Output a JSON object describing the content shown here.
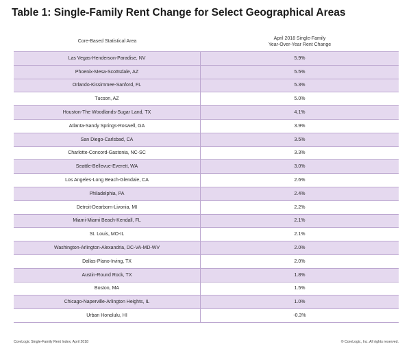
{
  "title": "Table 1: Single-Family Rent Change for Select Geographical Areas",
  "columns": {
    "area": "Core-Based Statistical Area",
    "change_line1": "April 2018 Single-Family",
    "change_line2": "Year-Over-Year Rent Change"
  },
  "rows": [
    {
      "area": "Las Vegas-Henderson-Paradise, NV",
      "change": "5.9%"
    },
    {
      "area": "Phoenix-Mesa-Scottsdale, AZ",
      "change": "5.5%"
    },
    {
      "area": "Orlando-Kissimmee-Sanford, FL",
      "change": "5.3%"
    },
    {
      "area": "Tucson, AZ",
      "change": "5.0%"
    },
    {
      "area": "Houston-The Woodlands-Sugar Land, TX",
      "change": "4.1%"
    },
    {
      "area": "Atlanta-Sandy Springs-Roswell, GA",
      "change": "3.9%"
    },
    {
      "area": "San Diego-Carlsbad, CA",
      "change": "3.5%"
    },
    {
      "area": "Charlotte-Concord-Gastonia, NC-SC",
      "change": "3.3%"
    },
    {
      "area": "Seattle-Bellevue-Everett, WA",
      "change": "3.0%"
    },
    {
      "area": "Los Angeles-Long Beach-Glendale, CA",
      "change": "2.6%"
    },
    {
      "area": "Philadelphia, PA",
      "change": "2.4%"
    },
    {
      "area": "Detroit-Dearborn-Livonia, MI",
      "change": "2.2%"
    },
    {
      "area": "Miami-Miami Beach-Kendall, FL",
      "change": "2.1%"
    },
    {
      "area": "St. Louis, MO-IL",
      "change": "2.1%"
    },
    {
      "area": "Washington-Arlington-Alexandria, DC-VA-MD-WV",
      "change": "2.0%"
    },
    {
      "area": "Dallas-Plano-Irving, TX",
      "change": "2.0%"
    },
    {
      "area": "Austin-Round Rock, TX",
      "change": "1.8%"
    },
    {
      "area": "Boston, MA",
      "change": "1.5%"
    },
    {
      "area": "Chicago-Naperville-Arlington Heights, IL",
      "change": "1.0%"
    },
    {
      "area": "Urban Honolulu, HI",
      "change": "-0.3%"
    }
  ],
  "footer": {
    "source": "CoreLogic Single-Family Rent Index, April 2018",
    "copyright": "© CoreLogic, Inc. All rights reserved."
  },
  "colors": {
    "shaded_row": "#e5d9ef",
    "border": "#bca7d0"
  }
}
